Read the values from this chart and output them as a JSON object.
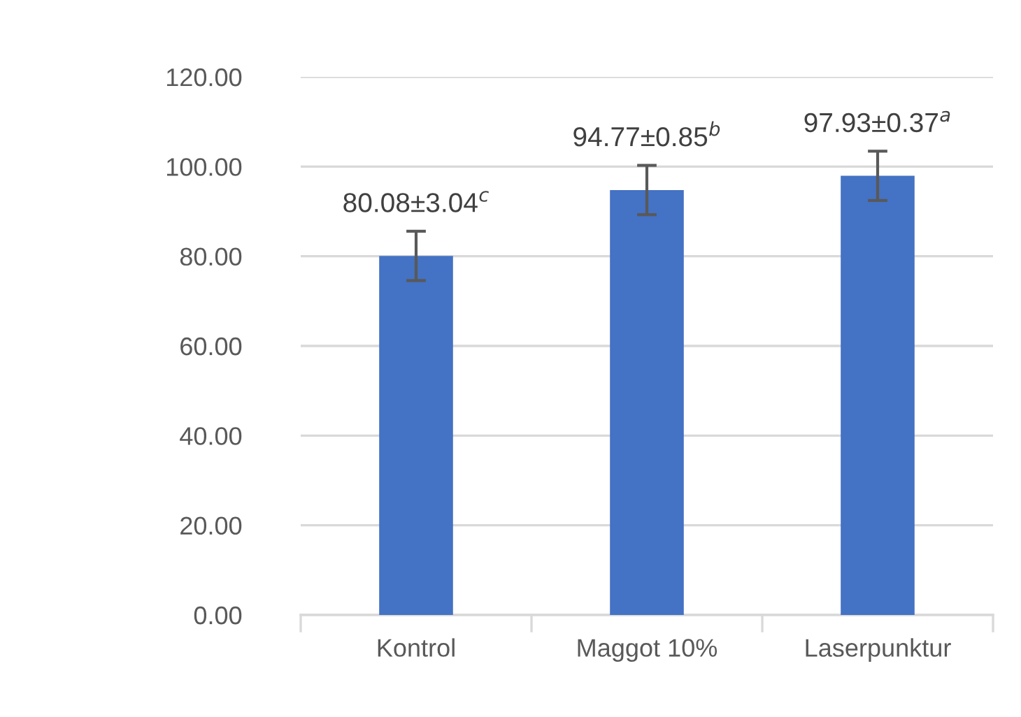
{
  "chart_data": {
    "type": "bar",
    "categories": [
      "Kontrol",
      "Maggot 10%",
      "Laserpunktur"
    ],
    "values": [
      80.08,
      94.77,
      97.93
    ],
    "errors": [
      5.5,
      5.5,
      5.5
    ],
    "value_labels": [
      "80.08±3.04$^{c}$",
      "94.77±0.85$^{b}$",
      "97.93±0.37$^{a}$"
    ],
    "color": "#4472c4",
    "ylim": [
      0,
      120
    ],
    "yticks": [
      {
        "value": 0,
        "label": "0.00"
      },
      {
        "value": 20,
        "label": "20.00"
      },
      {
        "value": 40,
        "label": "40.00"
      },
      {
        "value": 60,
        "label": "60.00"
      },
      {
        "value": 80,
        "label": "80.00"
      },
      {
        "value": 100,
        "label": "100.00"
      },
      {
        "value": 120,
        "label": "120.00"
      }
    ],
    "grid": "y"
  }
}
